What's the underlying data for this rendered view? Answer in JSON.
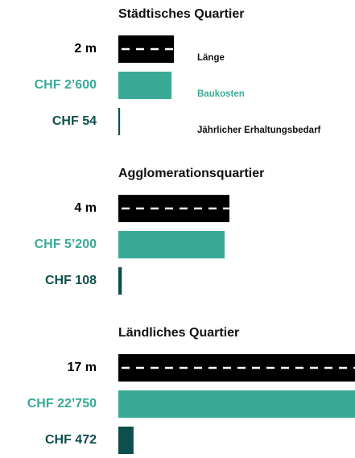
{
  "metrics": [
    {
      "name": "Länge",
      "color": "#000000"
    },
    {
      "name": "Baukosten",
      "color": "#3aaa97"
    },
    {
      "name": "Jährlicher Erhaltungsbedarf",
      "color": "#0d4f4c"
    }
  ],
  "groups": [
    {
      "title": "Städtisches Quartier",
      "values": [
        2,
        2600,
        54
      ],
      "value_labels": [
        "2 m",
        "CHF 2’600",
        "CHF 54"
      ]
    },
    {
      "title": "Agglomerationsquartier",
      "values": [
        4,
        5200,
        108
      ],
      "value_labels": [
        "4 m",
        "CHF 5’200",
        "CHF 108"
      ]
    },
    {
      "title": "Ländliches Quartier",
      "values": [
        17,
        22750,
        472
      ],
      "value_labels": [
        "17 m",
        "CHF 22’750",
        "CHF 472"
      ]
    }
  ]
}
